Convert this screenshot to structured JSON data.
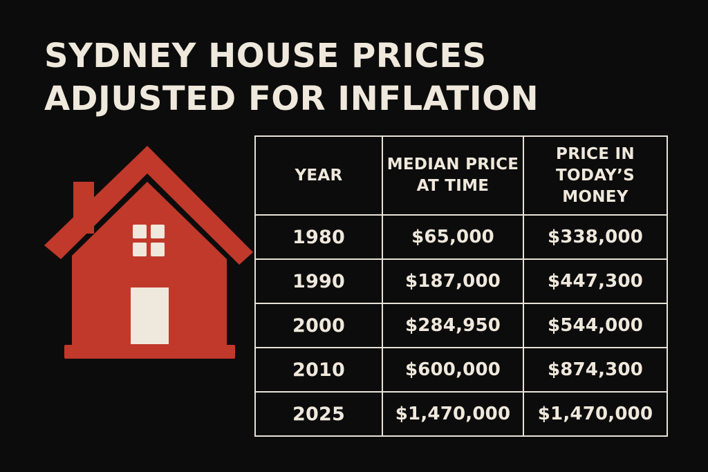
{
  "title": {
    "line1": "SYDNEY HOUSE PRICES",
    "line2": "ADJUSTED FOR INFLATION"
  },
  "icon": "house-icon",
  "colors": {
    "background": "#0d0c0c",
    "text": "#efe8dc",
    "house": "#c0392b",
    "house_detail": "#efe8dc"
  },
  "table": {
    "headers": [
      "YEAR",
      "MEDIAN PRICE AT TIME",
      "PRICE IN TODAY’S MONEY"
    ],
    "rows": [
      {
        "year": "1980",
        "median": "$65,000",
        "today": "$338,000"
      },
      {
        "year": "1990",
        "median": "$187,000",
        "today": "$447,300"
      },
      {
        "year": "2000",
        "median": "$284,950",
        "today": "$544,000"
      },
      {
        "year": "2010",
        "median": "$600,000",
        "today": "$874,300"
      },
      {
        "year": "2025",
        "median": "$1,470,000",
        "today": "$1,470,000"
      }
    ]
  }
}
